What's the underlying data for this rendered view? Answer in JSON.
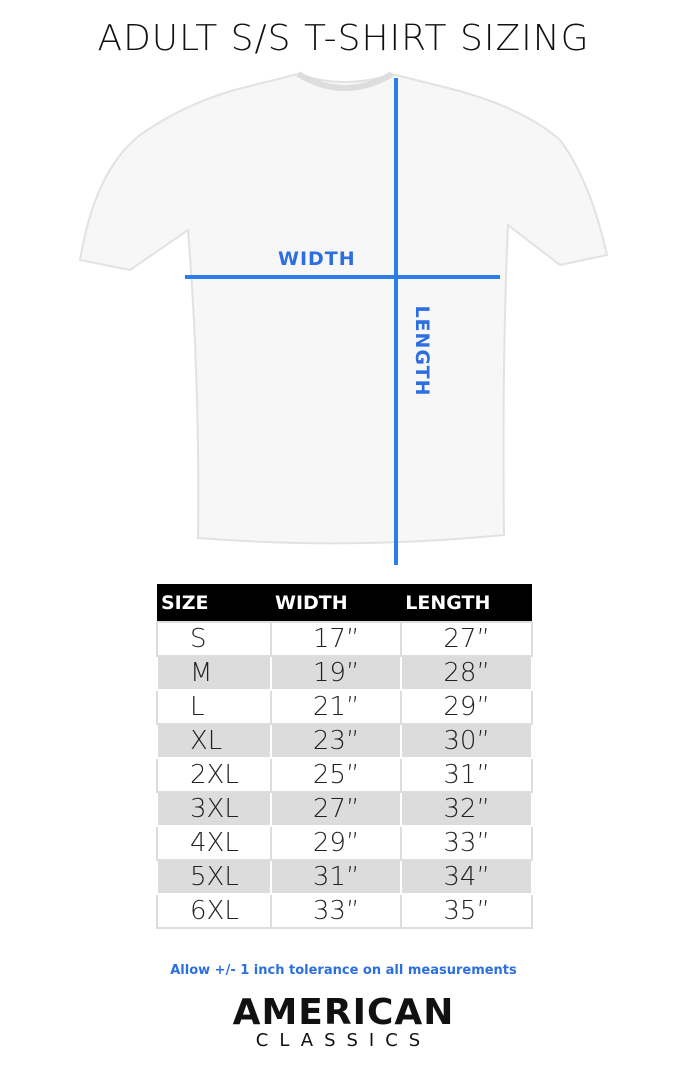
{
  "title": "ADULT S/S T-SHIRT SIZING",
  "diagram": {
    "width_label": "WIDTH",
    "length_label": "LENGTH",
    "accent_color": "#2b7de9"
  },
  "table": {
    "headers": [
      "SIZE",
      "WIDTH",
      "LENGTH"
    ],
    "rows": [
      [
        "S",
        "17”",
        "27”"
      ],
      [
        "M",
        "19”",
        "28”"
      ],
      [
        "L",
        "21”",
        "29”"
      ],
      [
        "XL",
        "23”",
        "30”"
      ],
      [
        "2XL",
        "25”",
        "31”"
      ],
      [
        "3XL",
        "27”",
        "32”"
      ],
      [
        "4XL",
        "29”",
        "33”"
      ],
      [
        "5XL",
        "31”",
        "34”"
      ],
      [
        "6XL",
        "33”",
        "35”"
      ]
    ]
  },
  "note": "Allow +/- 1 inch tolerance on all measurements",
  "logo": {
    "line1": "AMERICAN",
    "line2": "CLASSICS"
  }
}
